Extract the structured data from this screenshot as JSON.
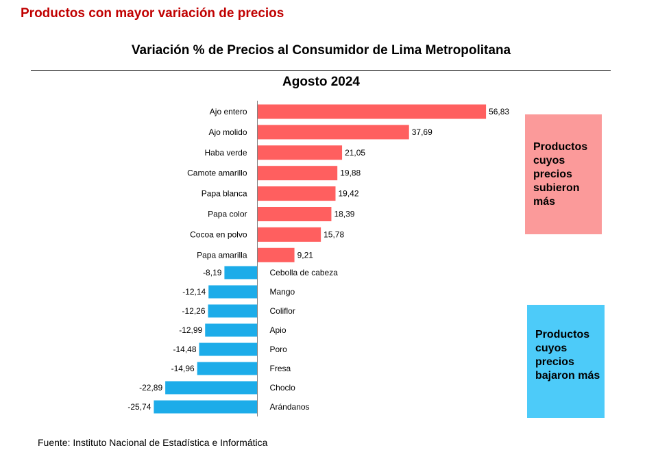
{
  "heading": "Productos con mayor variación de precios",
  "source_note": "Fuente: Instituto Nacional de Estadística e Informática",
  "colors": {
    "heading": "#c00000",
    "increase": "#ff5f5f",
    "decrease": "#1cace9",
    "legend_increase": "#fb9a9a",
    "legend_decrease": "#4dcbf9"
  },
  "legend": {
    "increase_label": "Productos cuyos precios subieron más",
    "decrease_label": "Productos cuyos precios bajaron más"
  },
  "chart_data": {
    "type": "bar",
    "orientation": "horizontal",
    "title": "Variación %  de Precios al Consumidor de Lima Metropolitana",
    "subtitle": "Agosto 2024",
    "categories": [
      "Ajo entero",
      "Ajo molido",
      "Haba verde",
      "Camote amarillo",
      "Papa blanca",
      "Papa color",
      "Cocoa en polvo",
      "Papa amarilla",
      "Cebolla de cabeza",
      "Mango",
      "Coliflor",
      "Apio",
      "Poro",
      "Fresa",
      "Choclo",
      "Arándanos"
    ],
    "values": [
      56.83,
      37.69,
      21.05,
      19.88,
      19.42,
      18.39,
      15.78,
      9.21,
      -8.19,
      -12.14,
      -12.26,
      -12.99,
      -14.48,
      -14.96,
      -22.89,
      -25.74
    ],
    "value_labels": [
      "56,83",
      "37,69",
      "21,05",
      "19,88",
      "19,42",
      "18,39",
      "15,78",
      "9,21",
      "-8,19",
      "-12,14",
      "-12,26",
      "-12,99",
      "-14,48",
      "-14,96",
      "-22,89",
      "-25,74"
    ],
    "xlim": [
      -26,
      57
    ],
    "grid": false,
    "legend_placement": "right"
  }
}
